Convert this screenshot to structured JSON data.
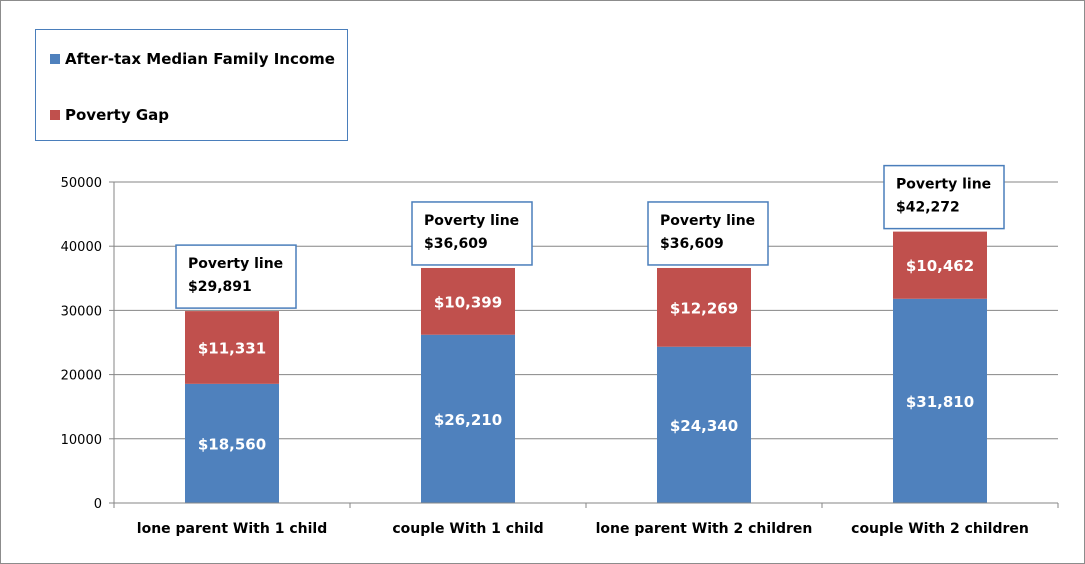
{
  "chart_data": {
    "type": "bar",
    "stacked": true,
    "categories": [
      "lone parent With 1 child",
      "couple With 1 child",
      "lone parent With 2 children",
      "couple With 2 children"
    ],
    "series": [
      {
        "name": "After-tax Median Family Income",
        "color": "#4f81bd",
        "values": [
          18560,
          26210,
          24340,
          31810
        ],
        "labels": [
          "$18,560",
          "$26,210",
          "$24,340",
          "$31,810"
        ]
      },
      {
        "name": "Poverty Gap",
        "color": "#c0504d",
        "values": [
          11331,
          10399,
          12269,
          10462
        ],
        "labels": [
          "$11,331",
          "$10,399",
          "$12,269",
          "$10,462"
        ]
      }
    ],
    "annotations": [
      {
        "title": "Poverty line",
        "value": "$29,891"
      },
      {
        "title": "Poverty line",
        "value": "$36,609"
      },
      {
        "title": "Poverty line",
        "value": "$36,609"
      },
      {
        "title": "Poverty line",
        "value": "$42,272"
      }
    ],
    "yticks": [
      "0",
      "10000",
      "20000",
      "30000",
      "40000",
      "50000"
    ],
    "ylim": [
      0,
      50000
    ],
    "grid": true,
    "legend_position": "top-left"
  }
}
